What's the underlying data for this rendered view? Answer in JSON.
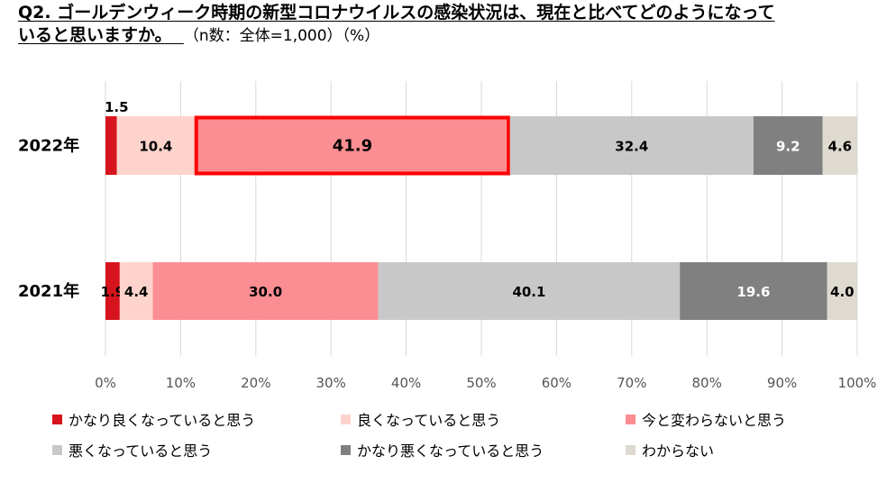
{
  "title": {
    "line1": "Q2. ゴールデンウィーク時期の新型コロナウイルスの感染状況は、現在と比べてどのようになって",
    "line2": "いると思いますか。",
    "note": "（n数：全体=1,000）（%）"
  },
  "chart_data": {
    "type": "bar",
    "orientation": "horizontal",
    "stacked": true,
    "categories": [
      "2022年",
      "2021年"
    ],
    "series": [
      {
        "name": "かなり良くなっていると思う",
        "color": "#d7141e",
        "values": [
          1.5,
          1.9
        ]
      },
      {
        "name": "良くなっていると思う",
        "color": "#fdd3cc",
        "values": [
          10.4,
          4.4
        ]
      },
      {
        "name": "今と変わらないと思う",
        "color": "#fb8e93",
        "values": [
          41.9,
          30.0
        ]
      },
      {
        "name": "悪くなっていると思う",
        "color": "#c8c8c8",
        "values": [
          32.4,
          40.1
        ]
      },
      {
        "name": "かなり悪くなっていると思う",
        "color": "#808080",
        "values": [
          9.2,
          19.6
        ]
      },
      {
        "name": "わからない",
        "color": "#dedad0",
        "values": [
          4.6,
          4.0
        ]
      }
    ],
    "x_ticks": [
      "0%",
      "10%",
      "20%",
      "30%",
      "40%",
      "50%",
      "60%",
      "70%",
      "80%",
      "90%",
      "100%"
    ],
    "xlim": [
      0,
      100
    ],
    "grid": true,
    "legend_position": "bottom",
    "highlight": {
      "category": "2022年",
      "series": "今と変わらないと思う",
      "color": "#ff0000"
    }
  }
}
